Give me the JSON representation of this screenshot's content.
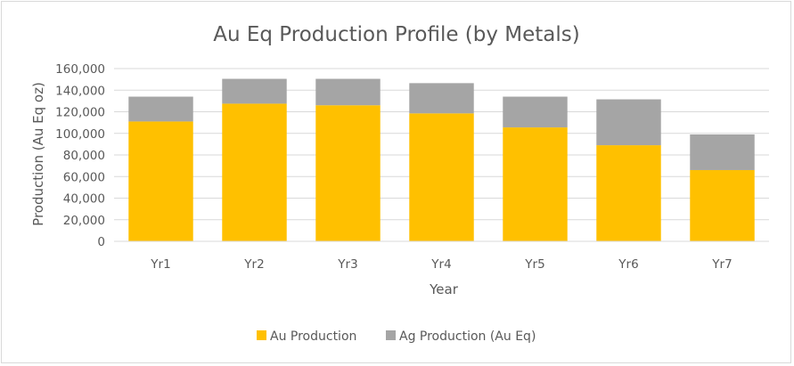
{
  "chart_data": {
    "type": "bar",
    "stacked": true,
    "title": "Au Eq Production Profile (by Metals)",
    "xlabel": "Year",
    "ylabel": "Production (Au Eq oz)",
    "categories": [
      "Yr1",
      "Yr2",
      "Yr3",
      "Yr4",
      "Yr5",
      "Yr6",
      "Yr7"
    ],
    "series": [
      {
        "name": "Au Production",
        "color": "#FFC000",
        "values": [
          111000,
          127500,
          126000,
          118500,
          105500,
          89000,
          66000
        ]
      },
      {
        "name": "Ag Production (Au Eq)",
        "color": "#A5A5A5",
        "values": [
          23000,
          23000,
          24500,
          28000,
          28500,
          42500,
          33000
        ]
      }
    ],
    "ylim": [
      0,
      160000
    ],
    "yticks": [
      "0",
      "20,000",
      "40,000",
      "60,000",
      "80,000",
      "100,000",
      "120,000",
      "140,000",
      "160,000"
    ],
    "ytick_values": [
      0,
      20000,
      40000,
      60000,
      80000,
      100000,
      120000,
      140000,
      160000
    ],
    "grid": true,
    "gridline_color": "#D9D9D9",
    "legend_position": "bottom"
  }
}
